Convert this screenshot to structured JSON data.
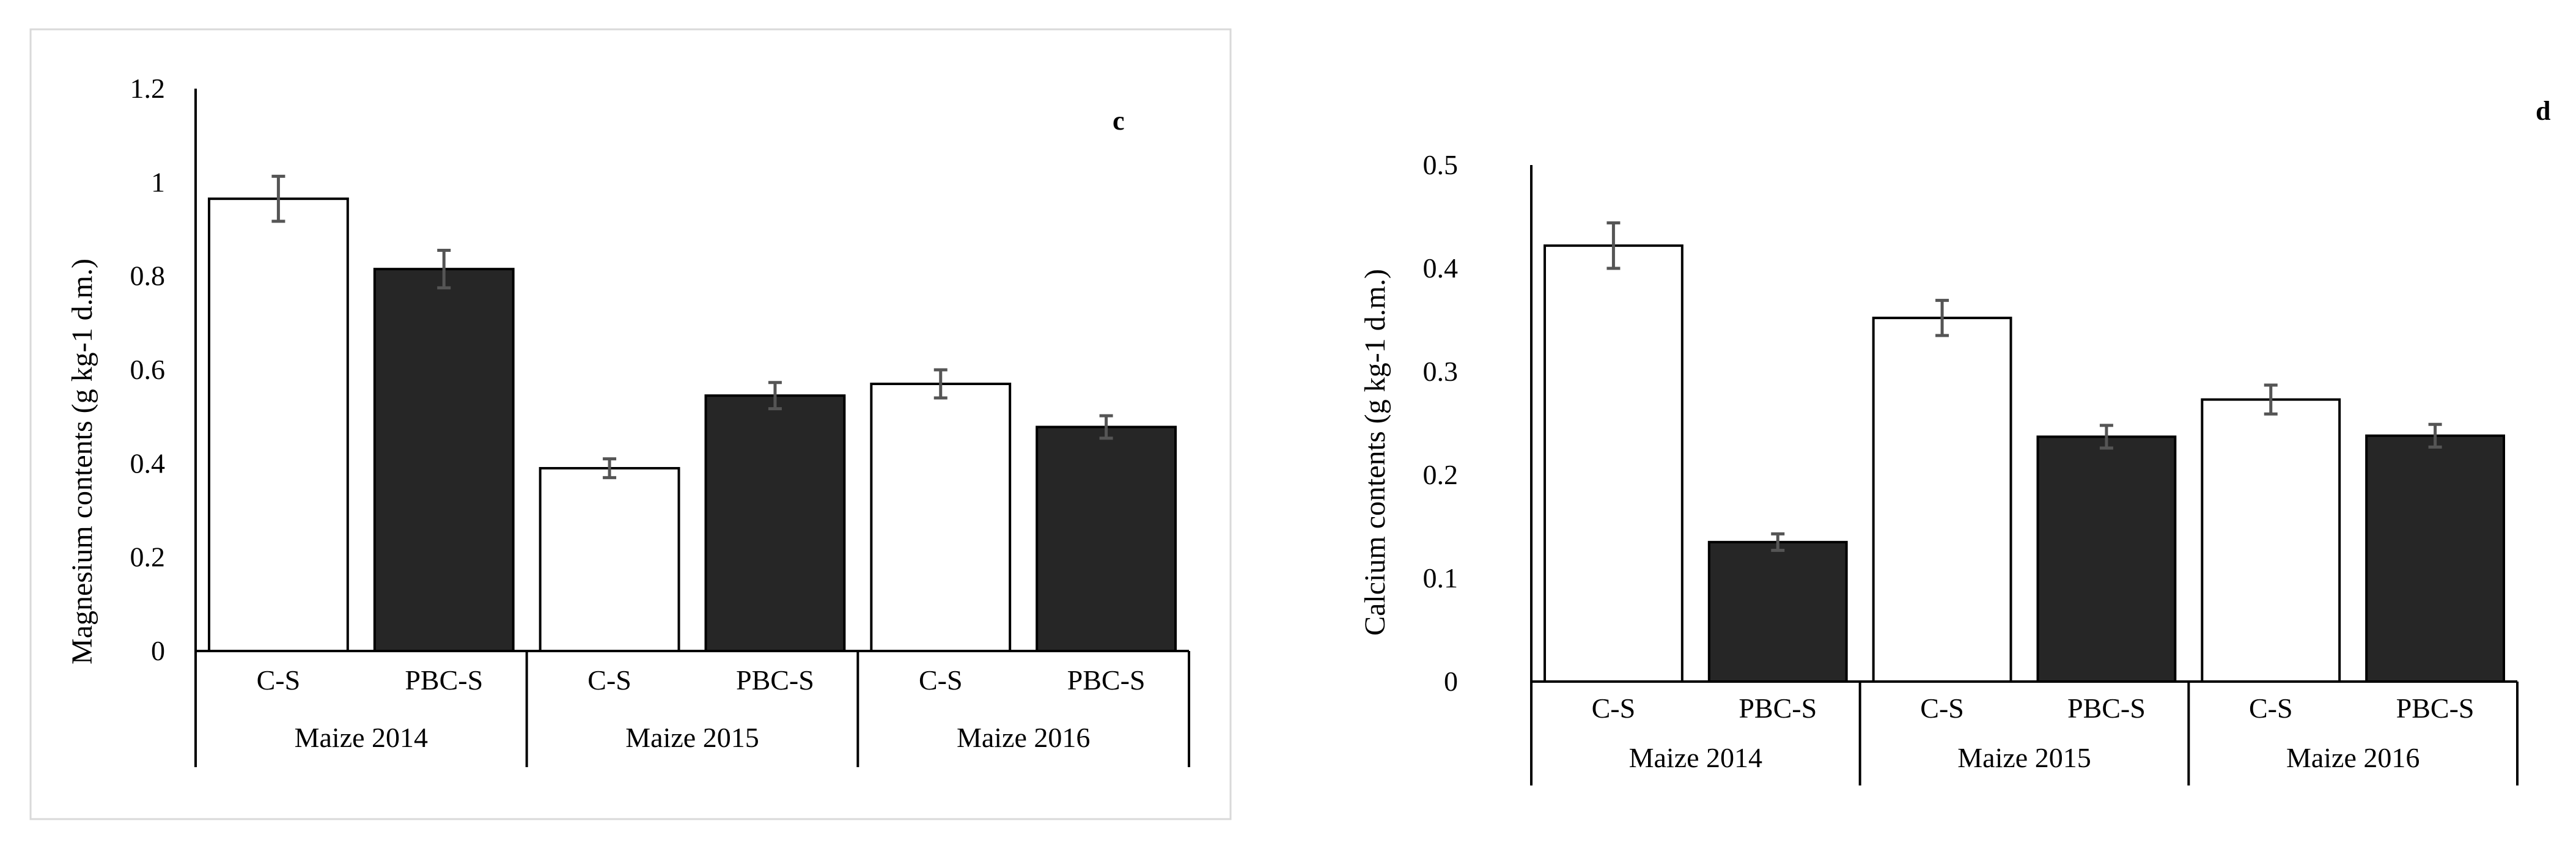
{
  "chart_data": [
    {
      "type": "bar",
      "panel": "c",
      "ylabel": "Magnesium contents (g kg-1 d.m.)",
      "xlabel": "",
      "ylim": [
        0,
        1.2
      ],
      "yticks": [
        0,
        0.2,
        0.4,
        0.6,
        0.8,
        1,
        1.2
      ],
      "ytick_labels": [
        "0",
        "0.2",
        "0.4",
        "0.6",
        "0.8",
        "1",
        "1.2"
      ],
      "groups": [
        "Maize 2014",
        "Maize 2015",
        "Maize 2016"
      ],
      "categories": [
        "C-S",
        "PBC-S",
        "C-S",
        "PBC-S",
        "C-S",
        "PBC-S"
      ],
      "treatments": [
        "C-S",
        "PBC-S"
      ],
      "colors": {
        "C-S": "#ffffff",
        "PBC-S": "#262626"
      },
      "values": [
        0.965,
        0.815,
        0.39,
        0.545,
        0.57,
        0.478
      ],
      "errors": [
        0.048,
        0.04,
        0.02,
        0.028,
        0.03,
        0.024
      ]
    },
    {
      "type": "bar",
      "panel": "d",
      "ylabel": "Calcium contents (g kg-1 d.m.)",
      "xlabel": "",
      "ylim": [
        0,
        0.5
      ],
      "yticks": [
        0,
        0.1,
        0.2,
        0.3,
        0.4,
        0.5
      ],
      "ytick_labels": [
        "0",
        "0.1",
        "0.2",
        "0.3",
        "0.4",
        "0.5"
      ],
      "groups": [
        "Maize 2014",
        "Maize 2015",
        "Maize 2016"
      ],
      "categories": [
        "C-S",
        "PBC-S",
        "C-S",
        "PBC-S",
        "C-S",
        "PBC-S"
      ],
      "treatments": [
        "C-S",
        "PBC-S"
      ],
      "colors": {
        "C-S": "#ffffff",
        "PBC-S": "#262626"
      },
      "values": [
        0.422,
        0.135,
        0.352,
        0.237,
        0.273,
        0.238
      ],
      "errors": [
        0.022,
        0.008,
        0.017,
        0.011,
        0.014,
        0.011
      ]
    }
  ]
}
